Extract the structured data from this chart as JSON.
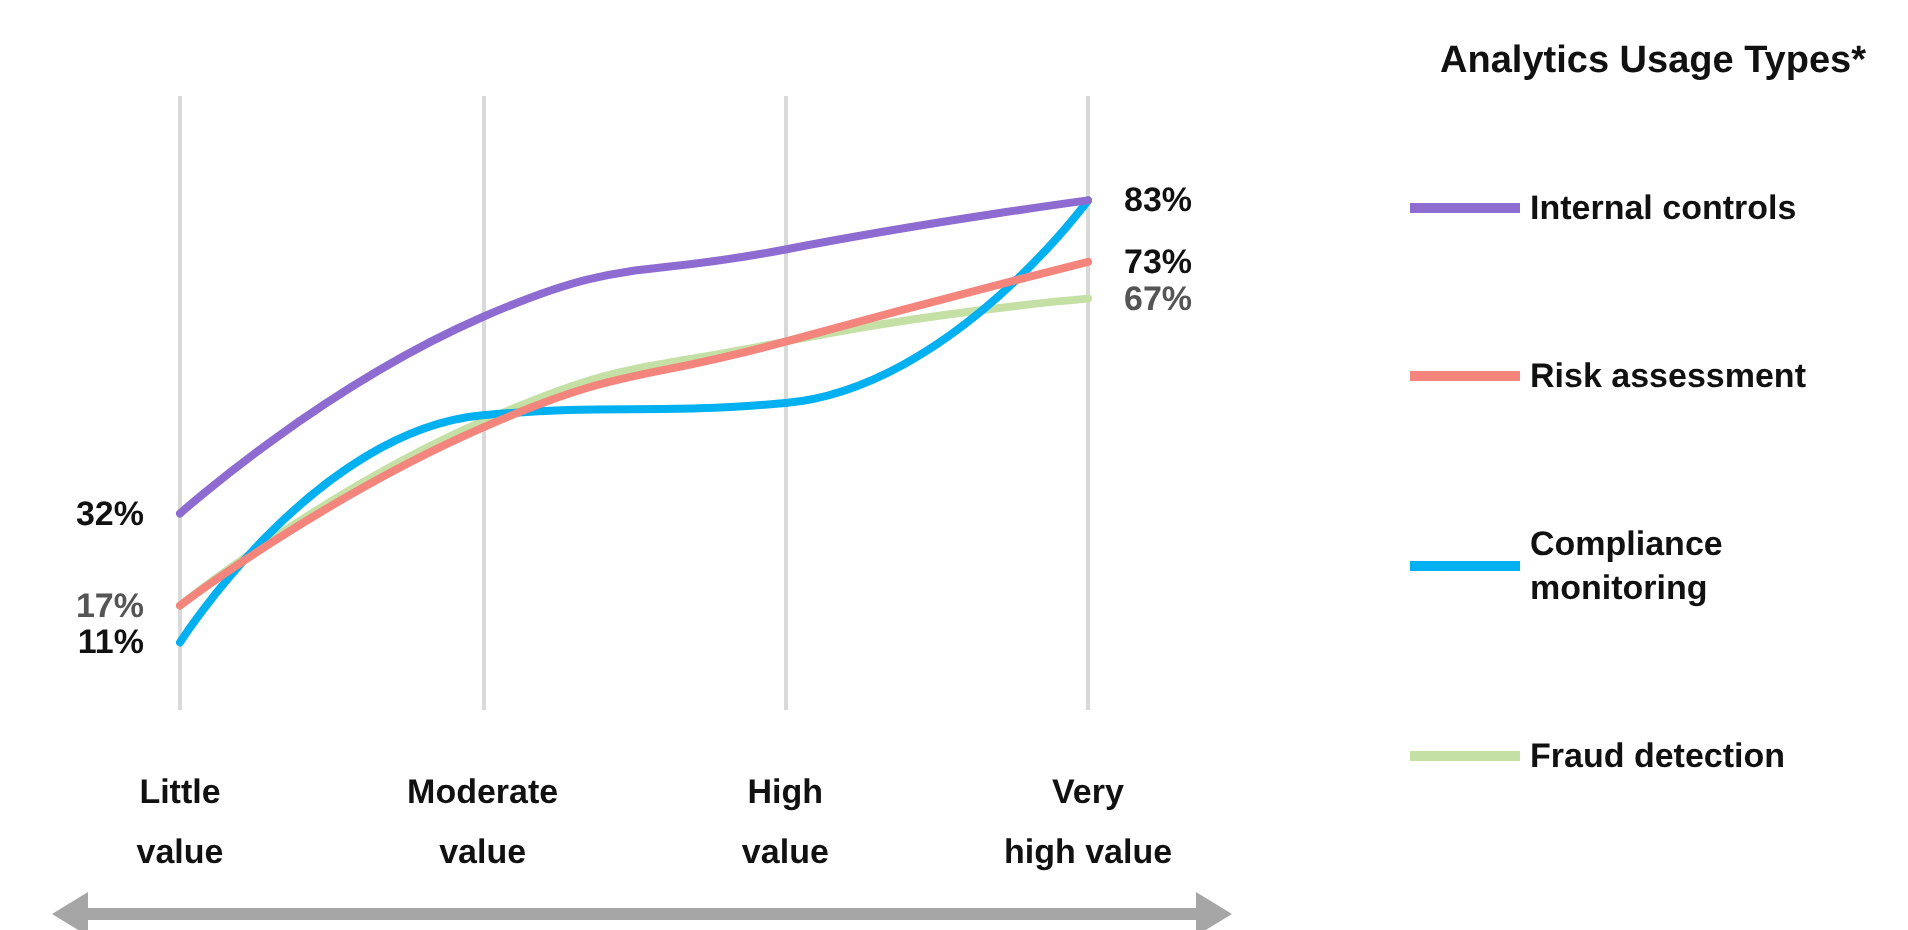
{
  "chart_data": {
    "type": "line",
    "legend_title": "Analytics Usage Types*",
    "categories": [
      "Little\nvalue",
      "Moderate\nvalue",
      "High\nvalue",
      "Very\nhigh value"
    ],
    "series": [
      {
        "name": "Internal controls",
        "color": "#8e6bd0",
        "values": [
          32,
          64,
          75,
          83
        ],
        "value_labels": [
          "32%",
          null,
          null,
          "83%"
        ]
      },
      {
        "name": "Risk assessment",
        "color": "#f4857d",
        "values": [
          17,
          46,
          60,
          73
        ],
        "value_labels": [
          null,
          null,
          null,
          "73%"
        ]
      },
      {
        "name": "Compliance\nmonitoring",
        "color": "#00b0f0",
        "values": [
          11,
          48,
          50,
          83
        ],
        "value_labels": [
          "11%",
          null,
          null,
          null
        ]
      },
      {
        "name": "Fraud detection",
        "color": "#c5e0a5",
        "values": [
          17,
          47,
          60,
          67
        ],
        "value_labels": [
          "17%",
          null,
          null,
          "67%"
        ]
      }
    ],
    "grid": "x",
    "legend": "right",
    "marker": "none",
    "line_style": "solid"
  }
}
